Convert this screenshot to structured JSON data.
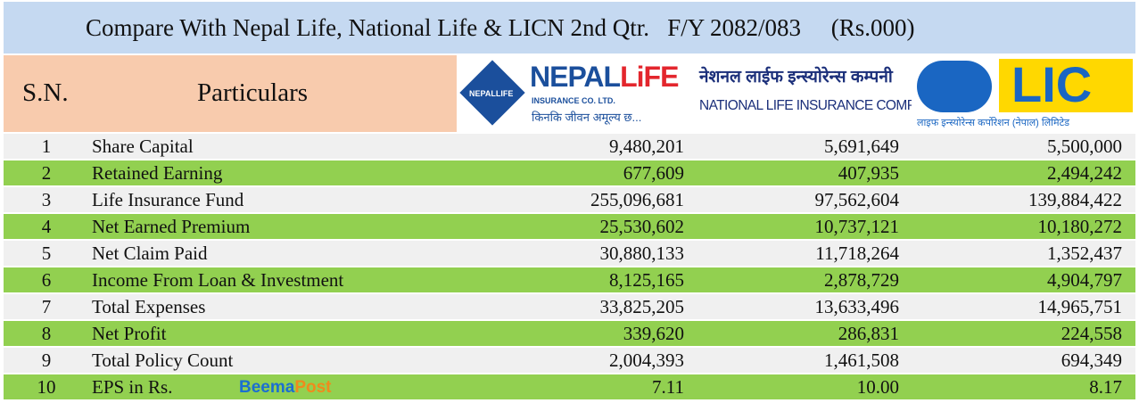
{
  "header": {
    "title": "Compare With Nepal Life, National Life & LICN 2nd Qtr.   F/Y 2082/083     (Rs.000)",
    "sn": "S.N.",
    "particulars": "Particulars"
  },
  "logos": {
    "nepal_life": {
      "name_a": "NEPAL",
      "name_b": "LiFE",
      "sub": "INSURANCE CO. LTD.",
      "tagline": "किनकि जीवन अमूल्य छ...",
      "badge": "NEPALLIFE"
    },
    "national_life": {
      "nepali": "नेशनल लाईफ इन्स्योरेन्स कम्पनी",
      "english": "NATIONAL LIFE INSURANCE COMPANY"
    },
    "lic": {
      "name": "LIC",
      "nepali": "लाइफ इन्स्योरेन्स कर्पोरेशन (नेपाल) लिमिटेड"
    }
  },
  "watermark": {
    "a": "Beema",
    "b": "Post"
  },
  "table": {
    "rows": [
      [
        "1",
        "Share Capital",
        "9,480,201",
        "5,691,649",
        "5,500,000"
      ],
      [
        "2",
        "Retained Earning",
        "677,609",
        "407,935",
        "2,494,242"
      ],
      [
        "3",
        "Life Insurance Fund",
        "255,096,681",
        "97,562,604",
        "139,884,422"
      ],
      [
        "4",
        "Net Earned Premium",
        "25,530,602",
        "10,737,121",
        "10,180,272"
      ],
      [
        "5",
        "Net Claim Paid",
        "30,880,133",
        "11,718,264",
        "1,352,437"
      ],
      [
        "6",
        "Income From Loan & Investment",
        "8,125,165",
        "2,878,729",
        "4,904,797"
      ],
      [
        "7",
        "Total Expenses",
        "33,825,205",
        "13,633,496",
        "14,965,751"
      ],
      [
        "8",
        "Net Profit",
        "339,620",
        "286,831",
        "224,558"
      ],
      [
        "9",
        "Total Policy Count",
        "2,004,393",
        "1,461,508",
        "694,349"
      ],
      [
        "10",
        "EPS in Rs.",
        "7.11",
        "10.00",
        "8.17"
      ]
    ]
  }
}
